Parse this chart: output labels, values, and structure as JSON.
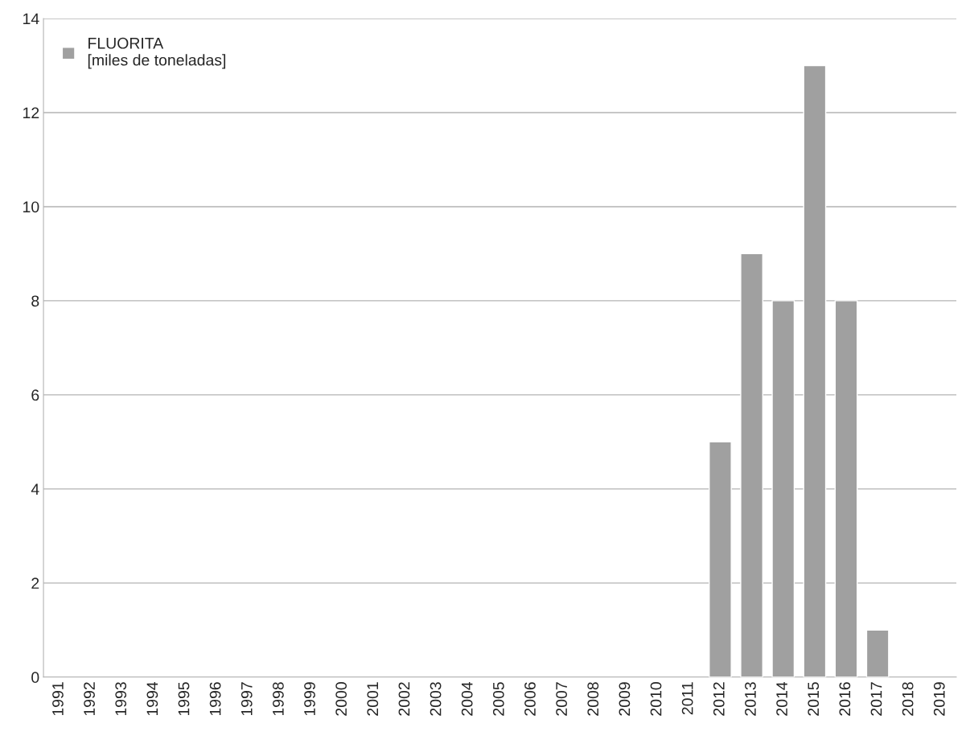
{
  "chart_data": {
    "type": "bar",
    "categories": [
      "1991",
      "1992",
      "1993",
      "1994",
      "1995",
      "1996",
      "1997",
      "1998",
      "1999",
      "2000",
      "2001",
      "2002",
      "2003",
      "2004",
      "2005",
      "2006",
      "2007",
      "2008",
      "2009",
      "2010",
      "2011",
      "2012",
      "2013",
      "2014",
      "2015",
      "2016",
      "2017",
      "2018",
      "2019"
    ],
    "series": [
      {
        "name": "FLUORITA\n[miles de toneladas]",
        "color": "#a0a0a0",
        "values": [
          null,
          null,
          null,
          null,
          null,
          null,
          null,
          null,
          null,
          null,
          null,
          null,
          null,
          null,
          null,
          null,
          null,
          null,
          null,
          null,
          null,
          5,
          9,
          8,
          13,
          8,
          1,
          null,
          null
        ]
      }
    ],
    "ylim": [
      0,
      14
    ],
    "yticks": [
      0,
      2,
      4,
      6,
      8,
      10,
      12,
      14
    ],
    "grid": "y",
    "legend": "top left"
  }
}
